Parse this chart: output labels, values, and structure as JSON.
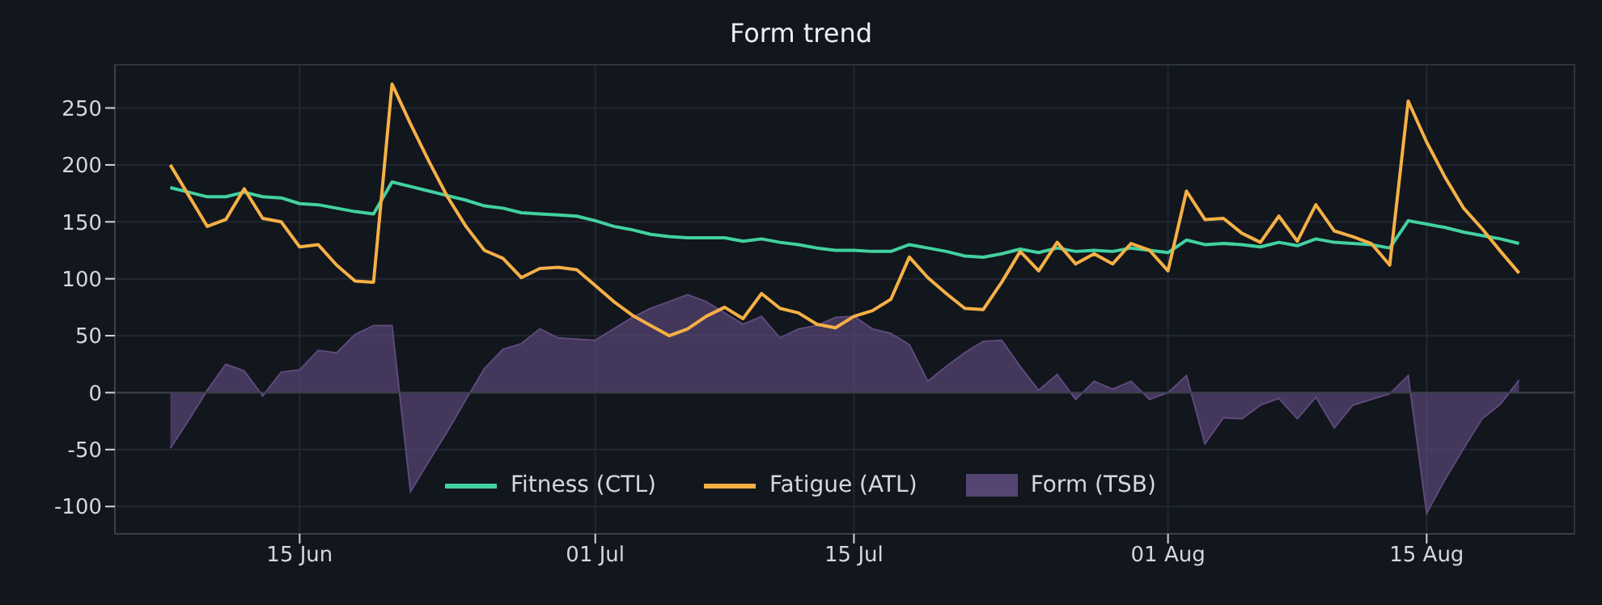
{
  "chart_data": {
    "type": "line",
    "title": "Form trend",
    "x": [
      "--06-08",
      "--06-09",
      "--06-10",
      "--06-11",
      "--06-12",
      "--06-13",
      "--06-14",
      "--06-15",
      "--06-16",
      "--06-17",
      "--06-18",
      "--06-19",
      "--06-20",
      "--06-21",
      "--06-22",
      "--06-23",
      "--06-24",
      "--06-25",
      "--06-26",
      "--06-27",
      "--06-28",
      "--06-29",
      "--06-30",
      "--07-01",
      "--07-02",
      "--07-03",
      "--07-04",
      "--07-05",
      "--07-06",
      "--07-07",
      "--07-08",
      "--07-09",
      "--07-10",
      "--07-11",
      "--07-12",
      "--07-13",
      "--07-14",
      "--07-15",
      "--07-16",
      "--07-17",
      "--07-18",
      "--07-19",
      "--07-20",
      "--07-21",
      "--07-22",
      "--07-23",
      "--07-24",
      "--07-25",
      "--07-26",
      "--07-27",
      "--07-28",
      "--07-29",
      "--07-30",
      "--07-31",
      "--08-01",
      "--08-02",
      "--08-03",
      "--08-04",
      "--08-05",
      "--08-06",
      "--08-07",
      "--08-08",
      "--08-09",
      "--08-10",
      "--08-11",
      "--08-12",
      "--08-13",
      "--08-14",
      "--08-15",
      "--08-16",
      "--08-17",
      "--08-18",
      "--08-19",
      "--08-20"
    ],
    "series": [
      {
        "name": "Fitness (CTL)",
        "color": "#42d1a0",
        "values": [
          180,
          176,
          172,
          172,
          176,
          172,
          171,
          166,
          165,
          162,
          159,
          157,
          185,
          181,
          177,
          173,
          169,
          164,
          162,
          158,
          157,
          156,
          155,
          151,
          146,
          143,
          139,
          137,
          136,
          136,
          136,
          133,
          135,
          132,
          130,
          127,
          125,
          125,
          124,
          124,
          130,
          127,
          124,
          120,
          119,
          122,
          126,
          123,
          127,
          124,
          125,
          124,
          127,
          125,
          123,
          134,
          130,
          131,
          130,
          128,
          132,
          129,
          135,
          132,
          131,
          130,
          127,
          151,
          148,
          145,
          141,
          138,
          135,
          131
        ]
      },
      {
        "name": "Fatigue (ATL)",
        "color": "#f5b045",
        "values": [
          200,
          173,
          146,
          152,
          179,
          153,
          150,
          128,
          130,
          112,
          98,
          97,
          271,
          236,
          203,
          172,
          146,
          125,
          118,
          101,
          109,
          110,
          108,
          94,
          80,
          68,
          59,
          50,
          56,
          67,
          75,
          65,
          87,
          74,
          70,
          60,
          57,
          67,
          72,
          82,
          119,
          101,
          87,
          74,
          73,
          97,
          124,
          107,
          132,
          113,
          122,
          113,
          131,
          125,
          107,
          177,
          152,
          153,
          140,
          132,
          155,
          133,
          165,
          142,
          137,
          131,
          112,
          256,
          220,
          189,
          162,
          144,
          124,
          105
        ]
      },
      {
        "name": "Form (TSB)",
        "type": "area",
        "color": "#5e4a7c",
        "values": [
          -49,
          -24,
          2,
          25,
          19,
          -3,
          18,
          20,
          37,
          35,
          51,
          59,
          59,
          -87,
          -60,
          -34,
          -6,
          21,
          38,
          43,
          56,
          48,
          47,
          46,
          56,
          66,
          74,
          80,
          86,
          80,
          70,
          60,
          67,
          48,
          56,
          59,
          66,
          67,
          56,
          52,
          42,
          10,
          23,
          35,
          45,
          46,
          23,
          2,
          16,
          -6,
          10,
          3,
          10,
          -6,
          0,
          15,
          -45,
          -22,
          -23,
          -11,
          -5,
          -23,
          -4,
          -31,
          -11,
          -6,
          -1,
          15,
          -106,
          -76,
          -49,
          -23,
          -10,
          11
        ]
      }
    ],
    "xlim": [
      "--06-05",
      "--08-23"
    ],
    "xticks": [
      {
        "value": "--06-15",
        "label": "15 Jun"
      },
      {
        "value": "--07-01",
        "label": "01 Jul"
      },
      {
        "value": "--07-15",
        "label": "15 Jul"
      },
      {
        "value": "--08-01",
        "label": "01 Aug"
      },
      {
        "value": "--08-15",
        "label": "15 Aug"
      }
    ],
    "ylim": [
      -124,
      288
    ],
    "yticks": [
      -100,
      -50,
      0,
      50,
      100,
      150,
      200,
      250
    ],
    "ref_lines": [
      {
        "axis": "y",
        "value": 0,
        "color": "#3a3f4b"
      }
    ],
    "grid": true,
    "legend": "bottom",
    "marker": "none",
    "line_style": "solid"
  }
}
